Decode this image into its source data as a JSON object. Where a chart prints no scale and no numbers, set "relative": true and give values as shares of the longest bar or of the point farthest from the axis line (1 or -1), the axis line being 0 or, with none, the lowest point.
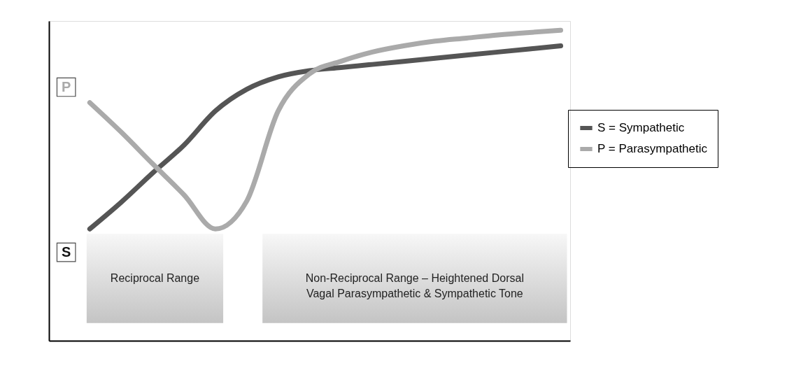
{
  "chart_data": {
    "type": "line",
    "relative": true,
    "categories": [
      null,
      null,
      null,
      null,
      null,
      null,
      null,
      null,
      null,
      null,
      null,
      null,
      null,
      null,
      null,
      null
    ],
    "series": [
      {
        "name": "S = Sympathetic",
        "color": "#555555",
        "values": [
          0.36,
          0.446,
          0.54,
          0.63,
          0.74,
          0.81,
          0.85,
          0.87,
          0.88,
          0.89,
          0.9,
          0.91,
          0.92,
          0.93,
          0.94,
          0.95
        ]
      },
      {
        "name": "P = Parasympathetic",
        "color": "#aaaaaa",
        "values": [
          0.767,
          0.672,
          0.57,
          0.47,
          0.36,
          0.45,
          0.74,
          0.86,
          0.9,
          0.93,
          0.95,
          0.965,
          0.975,
          0.985,
          0.993,
          1
        ]
      }
    ],
    "annotations": [
      "S",
      "P",
      "Reciprocal Range",
      "Non-Reciprocal Range – Heightened Dorsal\nVagal Parasympathetic & Sympathetic Tone"
    ],
    "legend": "right",
    "marker": "none",
    "line_style": "solid"
  }
}
